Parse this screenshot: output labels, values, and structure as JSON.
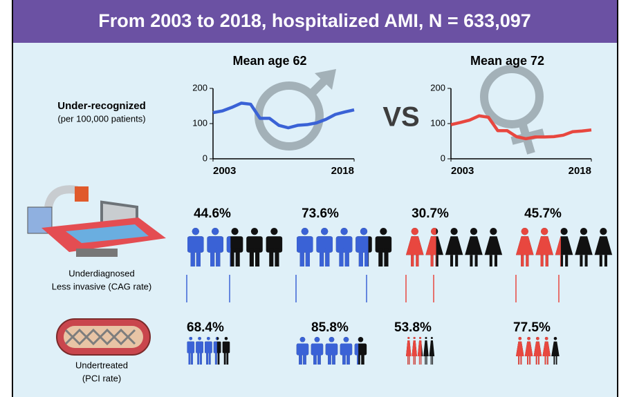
{
  "header": {
    "title": "From 2003 to 2018, hospitalized AMI, N = 633,097"
  },
  "vs": "VS",
  "chart_data": [
    {
      "type": "line",
      "title": "Mean age 62",
      "x": [
        2003,
        2004,
        2005,
        2006,
        2007,
        2008,
        2009,
        2010,
        2011,
        2012,
        2013,
        2014,
        2015,
        2016,
        2017,
        2018
      ],
      "series": [
        {
          "color": "#3a62d6",
          "values": [
            131,
            136,
            146,
            158,
            155,
            115,
            115,
            95,
            88,
            95,
            97,
            102,
            112,
            126,
            133,
            139
          ]
        }
      ],
      "xlim": [
        2003,
        2018
      ],
      "xticks": [
        2003,
        2018
      ],
      "ylim": [
        0,
        200
      ],
      "yticks": [
        0,
        100,
        200
      ]
    },
    {
      "type": "line",
      "title": "Mean age 72",
      "x": [
        2003,
        2004,
        2005,
        2006,
        2007,
        2008,
        2009,
        2010,
        2011,
        2012,
        2013,
        2014,
        2015,
        2016,
        2017,
        2018
      ],
      "series": [
        {
          "color": "#e8473f",
          "values": [
            97,
            103,
            110,
            122,
            118,
            80,
            80,
            63,
            57,
            62,
            62,
            63,
            67,
            77,
            79,
            82
          ]
        }
      ],
      "xlim": [
        2003,
        2018
      ],
      "xticks": [
        2003,
        2018
      ],
      "ylim": [
        0,
        200
      ],
      "yticks": [
        0,
        100,
        200
      ]
    }
  ],
  "line_row": {
    "label": "Under-recognized",
    "sublabel": "(per 100,000 patients)"
  },
  "cag": {
    "label": "Underdiagnosed",
    "sublabel": "Less invasive (CAG rate)",
    "values": [
      44.6,
      73.6,
      30.7,
      45.7
    ],
    "value_labels": [
      "44.6%",
      "73.6%",
      "30.7%",
      "45.7%"
    ],
    "colors": [
      "#3a62d6",
      "#3a62d6",
      "#e8473f",
      "#e8473f"
    ]
  },
  "pci": {
    "label": "Undertreated",
    "sublabel": "(PCI rate)",
    "values": [
      68.4,
      85.8,
      53.8,
      77.5
    ],
    "value_labels": [
      "68.4%",
      "85.8%",
      "53.8%",
      "77.5%"
    ],
    "colors": [
      "#3a62d6",
      "#3a62d6",
      "#e8473f",
      "#e8473f"
    ]
  }
}
